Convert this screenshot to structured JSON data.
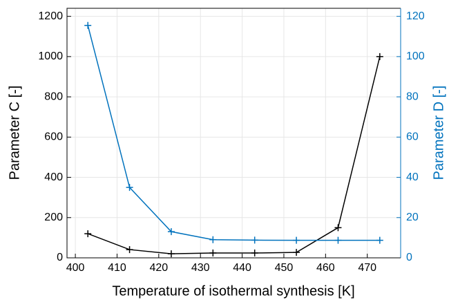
{
  "chart_data": {
    "type": "line",
    "x_label": "Temperature of isothermal synthesis [K]",
    "y_label": "Parameter C [-]",
    "y2_label": "Parameter D [-]",
    "x": [
      403,
      413,
      423,
      433,
      443,
      453,
      463,
      473
    ],
    "series": [
      {
        "name": "Parameter C",
        "color": "#000000",
        "values": [
          120,
          41,
          20,
          24,
          24,
          27,
          150,
          1000
        ]
      },
      {
        "name": "Parameter D",
        "color": "#0072bd",
        "axis": "y2",
        "values": [
          115.5,
          35,
          13,
          9,
          8.8,
          8.7,
          8.7,
          8.7
        ]
      }
    ],
    "xlim": [
      398,
      478
    ],
    "xticks": [
      400,
      410,
      420,
      430,
      440,
      450,
      460,
      470
    ],
    "ylim": [
      0,
      1240
    ],
    "yticks": [
      0,
      200,
      400,
      600,
      800,
      1000,
      1200
    ],
    "y2lim": [
      0,
      124
    ],
    "y2ticks": [
      0,
      20,
      40,
      60,
      80,
      100,
      120
    ],
    "grid": true
  }
}
